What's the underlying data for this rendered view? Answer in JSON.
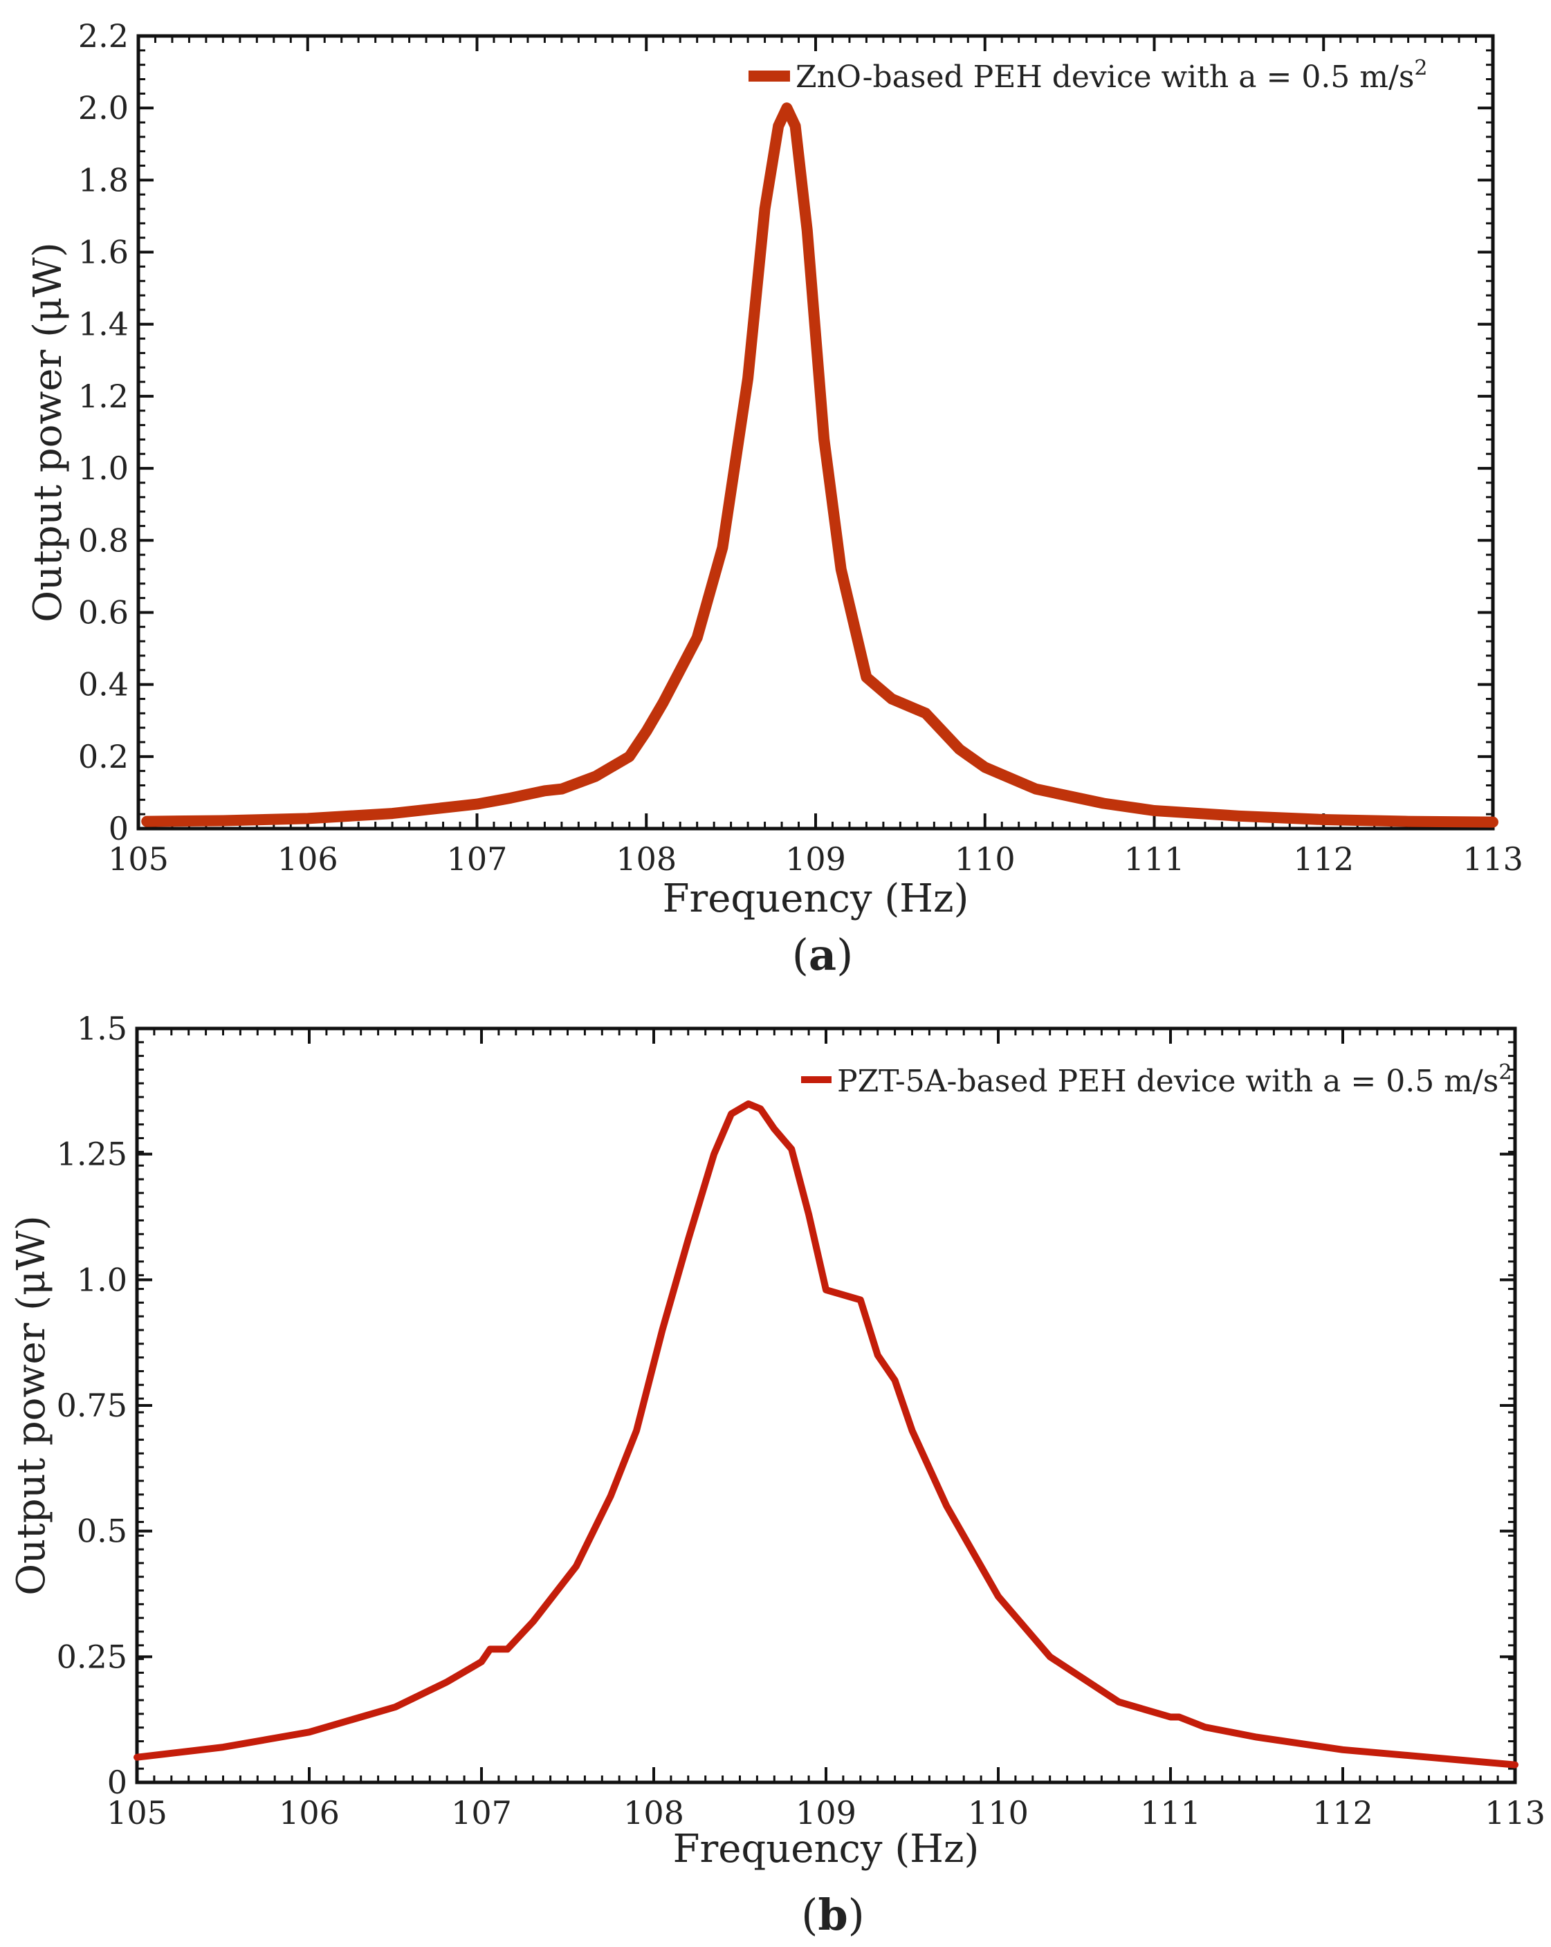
{
  "chart_data": [
    {
      "type": "line",
      "panel_label": "a",
      "xlabel": "Frequency (Hz)",
      "ylabel": "Output power (μW)",
      "xlim": [
        105,
        113
      ],
      "ylim": [
        0,
        2.2
      ],
      "xticks": [
        105,
        106,
        107,
        108,
        109,
        110,
        111,
        112,
        113
      ],
      "yticks": [
        0,
        0.2,
        0.4,
        0.6,
        0.8,
        1.0,
        1.2,
        1.4,
        1.6,
        1.8,
        2.0,
        2.2
      ],
      "ytick_labels": [
        "0",
        "0.2",
        "0.4",
        "0.6",
        "0.8",
        "1.0",
        "1.2",
        "1.4",
        "1.6",
        "1.8",
        "2.0",
        "2.2"
      ],
      "legend_position": "top-right",
      "series": [
        {
          "name": "ZnO-based PEH device with a = 0.5 m/s",
          "name_superscript": "2",
          "color": "#c0330b",
          "x": [
            105.05,
            105.5,
            106.0,
            106.5,
            107.0,
            107.2,
            107.4,
            107.5,
            107.7,
            107.9,
            108.0,
            108.1,
            108.3,
            108.45,
            108.6,
            108.7,
            108.78,
            108.83,
            108.88,
            108.95,
            109.05,
            109.15,
            109.3,
            109.45,
            109.55,
            109.65,
            109.85,
            110.0,
            110.3,
            110.7,
            111.0,
            111.5,
            112.0,
            112.5,
            113.0
          ],
          "y": [
            0.02,
            0.022,
            0.028,
            0.042,
            0.068,
            0.085,
            0.105,
            0.11,
            0.145,
            0.2,
            0.27,
            0.35,
            0.53,
            0.78,
            1.25,
            1.72,
            1.95,
            2.0,
            1.95,
            1.66,
            1.08,
            0.72,
            0.42,
            0.36,
            0.34,
            0.32,
            0.22,
            0.17,
            0.11,
            0.07,
            0.05,
            0.035,
            0.025,
            0.02,
            0.018
          ]
        }
      ]
    },
    {
      "type": "line",
      "panel_label": "b",
      "xlabel": "Frequency (Hz)",
      "ylabel": "Output power (μW)",
      "xlim": [
        105,
        113
      ],
      "ylim": [
        0,
        1.5
      ],
      "xticks": [
        105,
        106,
        107,
        108,
        109,
        110,
        111,
        112,
        113
      ],
      "yticks": [
        0,
        0.25,
        0.5,
        0.75,
        1.0,
        1.25,
        1.5
      ],
      "ytick_labels": [
        "0",
        "0.25",
        "0.5",
        "0.75",
        "1.0",
        "1.25",
        "1.5"
      ],
      "legend_position": "top-right",
      "series": [
        {
          "name": "PZT-5A-based PEH device with a = 0.5 m/s",
          "name_superscript": "2",
          "color": "#c41d0a",
          "x": [
            105.0,
            105.5,
            106.0,
            106.5,
            106.8,
            107.0,
            107.05,
            107.15,
            107.3,
            107.55,
            107.75,
            107.9,
            108.05,
            108.2,
            108.35,
            108.45,
            108.55,
            108.62,
            108.7,
            108.8,
            108.9,
            109.0,
            109.2,
            109.3,
            109.4,
            109.5,
            109.7,
            110.0,
            110.3,
            110.7,
            111.0,
            111.05,
            111.2,
            111.5,
            112.0,
            112.5,
            113.0
          ],
          "y": [
            0.05,
            0.07,
            0.1,
            0.15,
            0.2,
            0.24,
            0.265,
            0.265,
            0.32,
            0.43,
            0.57,
            0.7,
            0.9,
            1.08,
            1.25,
            1.33,
            1.35,
            1.34,
            1.3,
            1.26,
            1.13,
            0.98,
            0.96,
            0.85,
            0.8,
            0.7,
            0.55,
            0.37,
            0.25,
            0.16,
            0.13,
            0.13,
            0.11,
            0.09,
            0.065,
            0.05,
            0.035
          ]
        }
      ]
    }
  ]
}
